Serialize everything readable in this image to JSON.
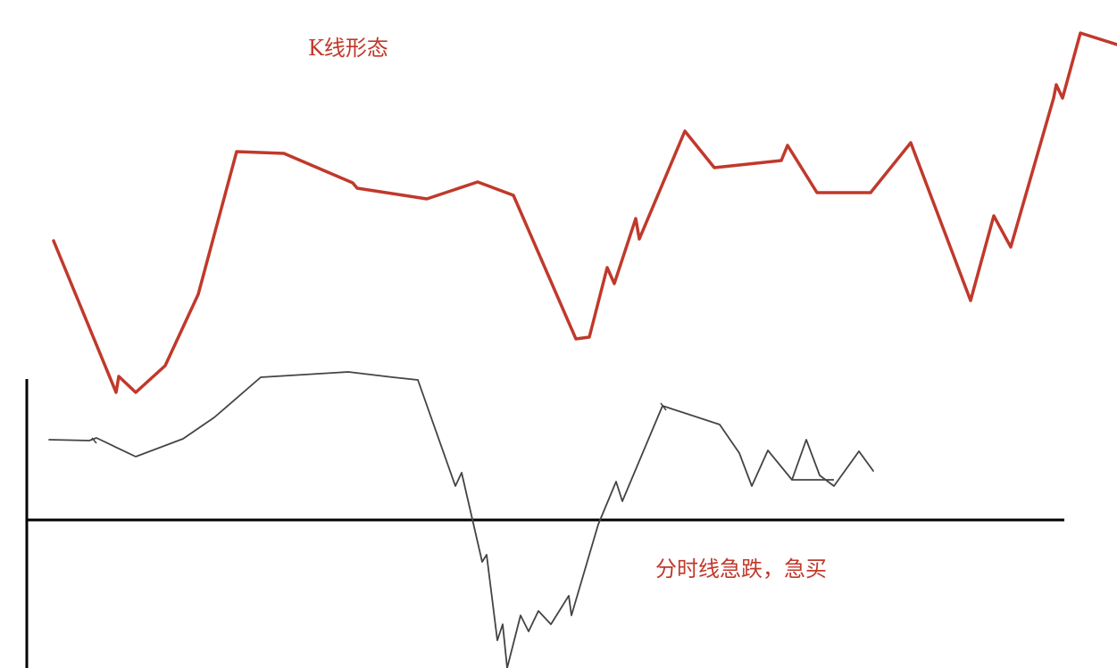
{
  "k_line": {
    "label": "K线形态",
    "color": "#c0392b"
  },
  "intraday": {
    "label": "分时线急跌，急买",
    "line_color": "#444444",
    "axis_color": "#000000"
  }
}
